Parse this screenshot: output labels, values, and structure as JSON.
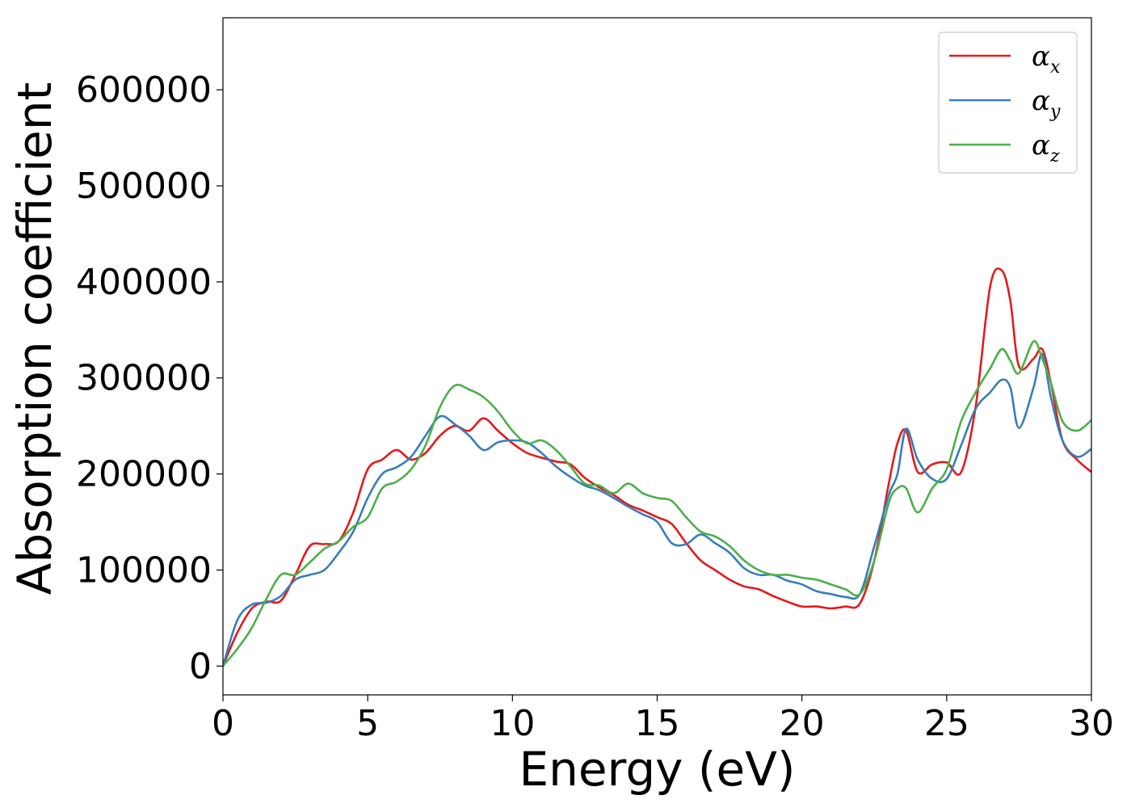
{
  "chart_data": {
    "type": "line",
    "xlabel": "Energy (eV)",
    "ylabel": "Absorption coefficient",
    "xlim": [
      0,
      30
    ],
    "ylim": [
      -30000,
      675000
    ],
    "xticks": [
      0,
      5,
      10,
      15,
      20,
      25,
      30
    ],
    "xtick_labels": [
      "0",
      "5",
      "10",
      "15",
      "20",
      "25",
      "30"
    ],
    "yticks": [
      0,
      100000,
      200000,
      300000,
      400000,
      500000,
      600000
    ],
    "ytick_labels": [
      "0",
      "100000",
      "200000",
      "300000",
      "400000",
      "500000",
      "600000"
    ],
    "grid": false,
    "legend_position": "top-right",
    "series": [
      {
        "name": "αx",
        "legend_symbol": "α",
        "legend_subscript": "x",
        "color": "#e41a1c",
        "x": [
          0,
          0.5,
          1,
          1.5,
          2,
          2.5,
          3,
          3.5,
          4,
          4.5,
          5,
          5.5,
          6,
          6.5,
          7,
          7.5,
          8,
          8.5,
          9,
          9.5,
          10,
          10.5,
          11,
          11.5,
          12,
          12.5,
          13,
          13.5,
          14,
          14.5,
          15,
          15.5,
          16,
          16.5,
          17,
          17.5,
          18,
          18.5,
          19,
          19.5,
          20,
          20.5,
          21,
          21.5,
          22,
          22.5,
          23,
          23.3,
          23.6,
          24,
          24.5,
          25,
          25.5,
          26,
          26.5,
          26.9,
          27.2,
          27.5,
          28,
          28.3,
          28.6,
          29,
          29.5,
          30
        ],
        "values": [
          0,
          35000,
          60000,
          67000,
          68000,
          95000,
          125000,
          127000,
          130000,
          160000,
          205000,
          215000,
          225000,
          215000,
          222000,
          240000,
          250000,
          245000,
          258000,
          245000,
          232000,
          222000,
          217000,
          213000,
          210000,
          196000,
          186000,
          178000,
          168000,
          162000,
          155000,
          148000,
          128000,
          110000,
          100000,
          90000,
          83000,
          80000,
          73000,
          67000,
          62000,
          62000,
          60000,
          62000,
          65000,
          110000,
          190000,
          232000,
          245000,
          202000,
          210000,
          212000,
          202000,
          270000,
          395000,
          412000,
          380000,
          312000,
          320000,
          330000,
          295000,
          235000,
          215000,
          202000
        ]
      },
      {
        "name": "αy",
        "legend_symbol": "α",
        "legend_subscript": "y",
        "color": "#377eb8",
        "x": [
          0,
          0.5,
          1,
          1.5,
          2,
          2.5,
          3,
          3.5,
          4,
          4.5,
          5,
          5.5,
          6,
          6.5,
          7,
          7.5,
          8,
          8.5,
          9,
          9.5,
          10,
          10.5,
          11,
          11.5,
          12,
          12.5,
          13,
          13.5,
          14,
          14.5,
          15,
          15.5,
          16,
          16.5,
          17,
          17.5,
          18,
          18.5,
          19,
          19.5,
          20,
          20.5,
          21,
          21.5,
          22,
          22.5,
          23,
          23.3,
          23.6,
          24,
          24.5,
          25,
          25.5,
          26,
          26.5,
          26.9,
          27.2,
          27.5,
          28,
          28.3,
          28.6,
          29,
          29.5,
          30
        ],
        "values": [
          0,
          48000,
          64000,
          66000,
          73000,
          90000,
          95000,
          100000,
          118000,
          140000,
          175000,
          200000,
          207000,
          218000,
          240000,
          260000,
          252000,
          240000,
          225000,
          233000,
          235000,
          233000,
          222000,
          208000,
          197000,
          188000,
          183000,
          175000,
          166000,
          158000,
          150000,
          128000,
          127000,
          137000,
          128000,
          118000,
          102000,
          95000,
          95000,
          89000,
          85000,
          78000,
          75000,
          72000,
          75000,
          125000,
          178000,
          200000,
          247000,
          215000,
          195000,
          195000,
          230000,
          268000,
          285000,
          298000,
          290000,
          248000,
          290000,
          325000,
          280000,
          235000,
          218000,
          226000
        ]
      },
      {
        "name": "αz",
        "legend_symbol": "α",
        "legend_subscript": "z",
        "color": "#4daf4a",
        "x": [
          0,
          0.5,
          1,
          1.5,
          2,
          2.5,
          3,
          3.5,
          4,
          4.5,
          5,
          5.5,
          6,
          6.5,
          7,
          7.5,
          8,
          8.5,
          9,
          9.5,
          10,
          10.5,
          11,
          11.5,
          12,
          12.5,
          13,
          13.5,
          14,
          14.5,
          15,
          15.5,
          16,
          16.5,
          17,
          17.5,
          18,
          18.5,
          19,
          19.5,
          20,
          20.5,
          21,
          21.5,
          22,
          22.5,
          23,
          23.3,
          23.6,
          24,
          24.5,
          25,
          25.5,
          26,
          26.5,
          26.9,
          27.2,
          27.5,
          28,
          28.3,
          28.6,
          29,
          29.5,
          30
        ],
        "values": [
          0,
          18000,
          40000,
          70000,
          95000,
          95000,
          108000,
          122000,
          130000,
          145000,
          155000,
          185000,
          192000,
          205000,
          230000,
          270000,
          292000,
          288000,
          280000,
          265000,
          245000,
          232000,
          235000,
          225000,
          208000,
          190000,
          188000,
          180000,
          190000,
          180000,
          175000,
          172000,
          155000,
          140000,
          135000,
          125000,
          110000,
          100000,
          95000,
          95000,
          92000,
          90000,
          85000,
          80000,
          75000,
          110000,
          170000,
          185000,
          185000,
          160000,
          185000,
          205000,
          255000,
          285000,
          310000,
          330000,
          318000,
          305000,
          338000,
          320000,
          295000,
          255000,
          245000,
          256000
        ]
      }
    ]
  }
}
